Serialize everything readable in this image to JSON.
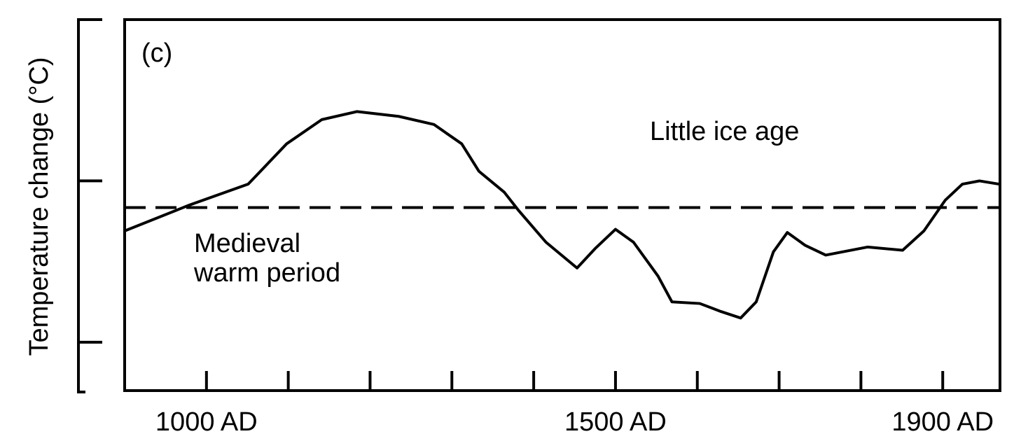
{
  "chart_data": {
    "type": "line",
    "y_label": "Temperature change (°C)",
    "annotations": [
      "(c)",
      "Little ice age",
      "Medieval",
      "warm period"
    ],
    "x": [
      900,
      979,
      1051,
      1098,
      1141,
      1184,
      1235,
      1278,
      1312,
      1333,
      1364,
      1381,
      1415,
      1453,
      1475,
      1500,
      1522,
      1552,
      1569,
      1603,
      1629,
      1653,
      1672,
      1693,
      1710,
      1732,
      1757,
      1808,
      1851,
      1877,
      1903,
      1924,
      1945,
      1969
    ],
    "series": [
      {
        "color": "#000000",
        "values": [
          -0.31,
          -0.15,
          -0.02,
          0.23,
          0.38,
          0.43,
          0.4,
          0.35,
          0.23,
          0.06,
          -0.07,
          -0.18,
          -0.38,
          -0.54,
          -0.42,
          -0.3,
          -0.38,
          -0.59,
          -0.75,
          -0.76,
          -0.81,
          -0.85,
          -0.75,
          -0.44,
          -0.32,
          -0.4,
          -0.46,
          -0.41,
          -0.43,
          -0.31,
          -0.12,
          -0.02,
          0.0,
          -0.02
        ]
      }
    ],
    "reference_line": -0.165,
    "xlim": [
      900,
      1970
    ],
    "ylim": [
      -1.3,
      1.0
    ],
    "xticks": [
      {
        "value": 1000,
        "label": "1000 AD"
      },
      {
        "value": 1100,
        "label": null
      },
      {
        "value": 1200,
        "label": null
      },
      {
        "value": 1300,
        "label": null
      },
      {
        "value": 1400,
        "label": null
      },
      {
        "value": 1500,
        "label": "1500 AD"
      },
      {
        "value": 1600,
        "label": null
      },
      {
        "value": 1700,
        "label": null
      },
      {
        "value": 1800,
        "label": null
      },
      {
        "value": 1900,
        "label": "1900 AD"
      }
    ],
    "yticks": [
      {
        "value": -1,
        "label": null
      },
      {
        "value": 0,
        "label": null
      },
      {
        "value": 1,
        "label": null
      }
    ],
    "grid": false
  }
}
